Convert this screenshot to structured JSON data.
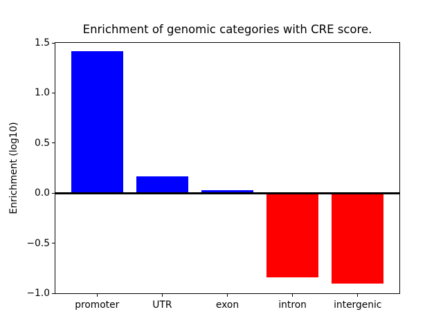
{
  "chart_data": {
    "type": "bar",
    "title": "Enrichment of genomic categories with CRE score.",
    "xlabel": "",
    "ylabel": "Enrichment (log10)",
    "categories": [
      "promoter",
      "UTR",
      "exon",
      "intron",
      "intergenic"
    ],
    "values": [
      1.42,
      0.17,
      0.03,
      -0.84,
      -0.9
    ],
    "bar_colors": [
      "#0000ff",
      "#0000ff",
      "#0000ff",
      "#ff0000",
      "#ff0000"
    ],
    "positive_color": "#0000ff",
    "negative_color": "#ff0000",
    "ylim": [
      -1.0,
      1.5
    ],
    "xlim": [
      -0.64,
      4.64
    ],
    "yticks": [
      1.5,
      1.0,
      0.5,
      0.0,
      -0.5,
      -1.0
    ],
    "ytick_labels": [
      "1.5",
      "1.0",
      "0.5",
      "0.0",
      "−0.5",
      "−1.0"
    ],
    "bar_width_fraction": 0.8,
    "grid": false,
    "legend": "none",
    "zero_line": true,
    "zero_line_color": "#000000",
    "background_color": "#ffffff",
    "spine_color": "#000000",
    "text_color": "#000000"
  }
}
